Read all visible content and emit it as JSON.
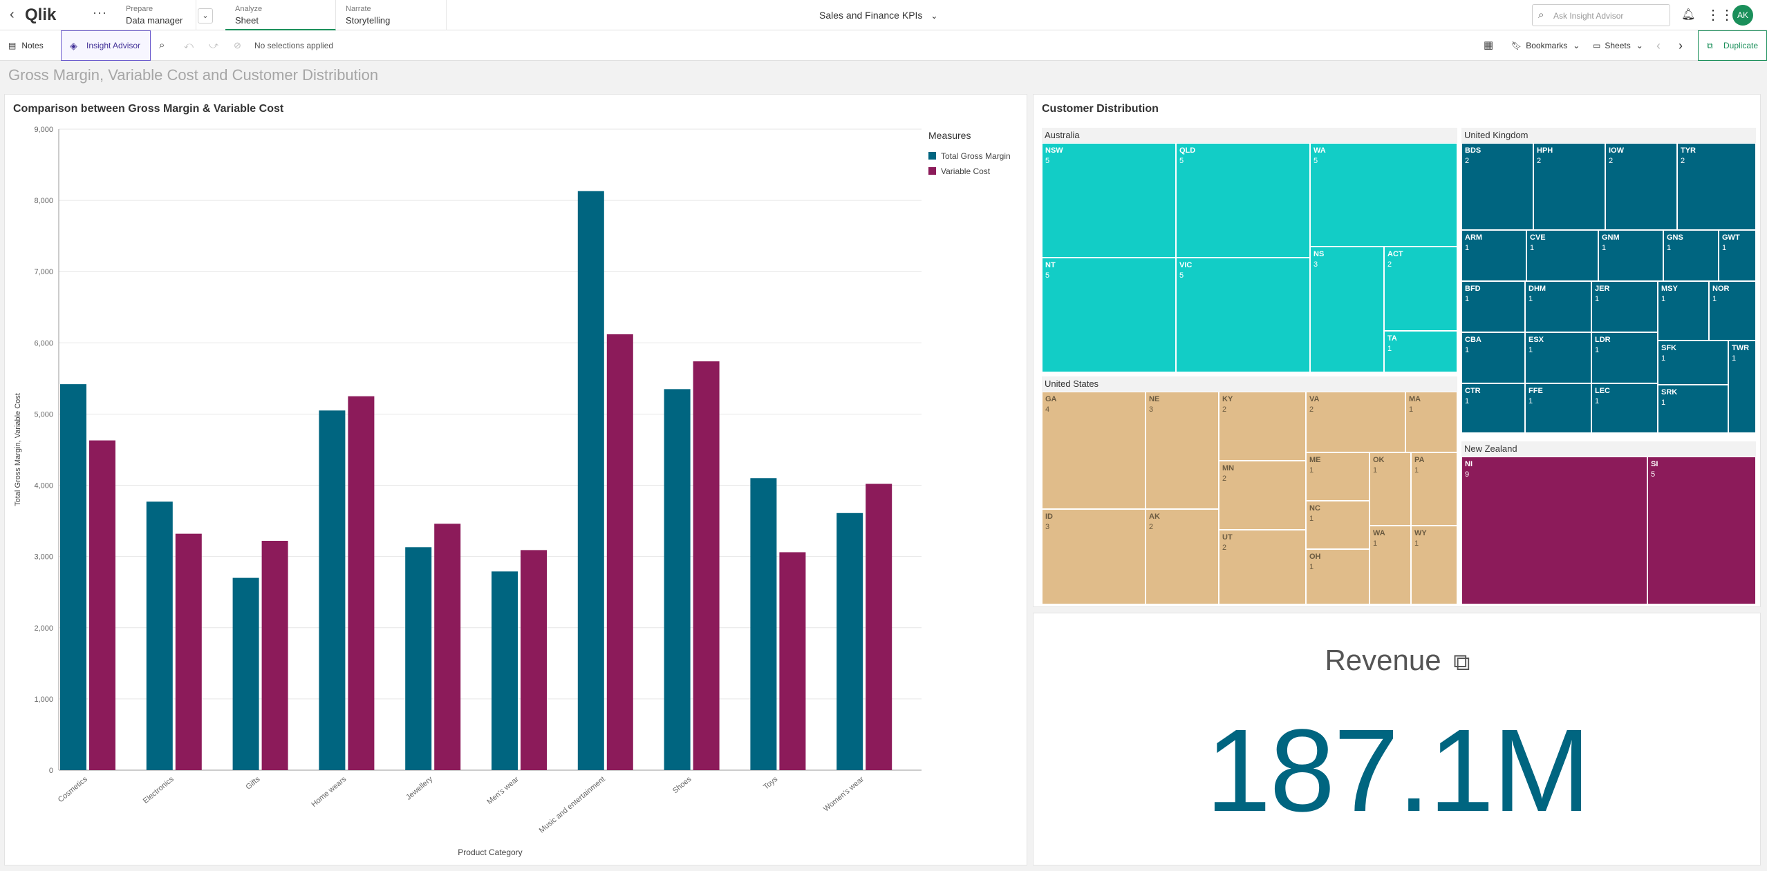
{
  "topbar": {
    "logo": "Qlik",
    "sections": [
      {
        "small": "Prepare",
        "big": "Data manager"
      },
      {
        "small": "Analyze",
        "big": "Sheet"
      },
      {
        "small": "Narrate",
        "big": "Storytelling"
      }
    ],
    "app_title": "Sales and Finance KPIs",
    "search_placeholder": "Ask Insight Advisor",
    "avatar": "AK"
  },
  "toolbar": {
    "notes": "Notes",
    "insight_advisor": "Insight Advisor",
    "selections": "No selections applied",
    "bookmarks": "Bookmarks",
    "sheets": "Sheets",
    "duplicate": "Duplicate"
  },
  "sheet_title": "Gross Margin, Variable Cost and Customer Distribution",
  "bar_panel": {
    "title": "Comparison between Gross Margin & Variable Cost",
    "legend_title": "Measures"
  },
  "chart_data": {
    "type": "bar",
    "title": "Comparison between Gross Margin & Variable Cost",
    "xlabel": "Product Category",
    "ylabel": "Total Gross Margin, Variable Cost",
    "ylim": [
      0,
      9000
    ],
    "yticks": [
      0,
      1000,
      2000,
      3000,
      4000,
      5000,
      6000,
      7000,
      8000,
      9000
    ],
    "ytick_labels": [
      "0",
      "1,000",
      "2,000",
      "3,000",
      "4,000",
      "5,000",
      "6,000",
      "7,000",
      "8,000",
      "9,000"
    ],
    "categories": [
      "Cosmetics",
      "Electronics",
      "Gifts",
      "Home wears",
      "Jewellery",
      "Men's wear",
      "Music and entertainment",
      "Shoes",
      "Toys",
      "Women's wear"
    ],
    "series": [
      {
        "name": "Total Gross Margin",
        "color": "#006580",
        "values": [
          5420,
          3770,
          2700,
          5050,
          3130,
          2790,
          8130,
          5350,
          4100,
          3610
        ]
      },
      {
        "name": "Variable Cost",
        "color": "#8c1b5a",
        "values": [
          4630,
          3320,
          3220,
          5250,
          3460,
          3090,
          6120,
          5740,
          3060,
          4020
        ]
      }
    ],
    "legend_position": "right",
    "grid": true
  },
  "treemap_panel": {
    "title": "Customer Distribution",
    "groups": [
      {
        "name": "Australia",
        "color": "#12cdc6",
        "cells": [
          {
            "code": "NSW",
            "value": "5"
          },
          {
            "code": "QLD",
            "value": "5"
          },
          {
            "code": "WA",
            "value": "5"
          },
          {
            "code": "NT",
            "value": "5"
          },
          {
            "code": "VIC",
            "value": "5"
          },
          {
            "code": "NS",
            "value": "3"
          },
          {
            "code": "ACT",
            "value": "2"
          },
          {
            "code": "TA",
            "value": "1"
          }
        ]
      },
      {
        "name": "United Kingdom",
        "color": "#006580",
        "cells": [
          {
            "code": "BDS",
            "value": "2"
          },
          {
            "code": "HPH",
            "value": "2"
          },
          {
            "code": "IOW",
            "value": "2"
          },
          {
            "code": "TYR",
            "value": "2"
          },
          {
            "code": "ARM",
            "value": "1"
          },
          {
            "code": "CVE",
            "value": "1"
          },
          {
            "code": "GNM",
            "value": "1"
          },
          {
            "code": "GNS",
            "value": "1"
          },
          {
            "code": "GWT",
            "value": "1"
          },
          {
            "code": "BFD",
            "value": "1"
          },
          {
            "code": "DHM",
            "value": "1"
          },
          {
            "code": "JER",
            "value": "1"
          },
          {
            "code": "MSY",
            "value": "1"
          },
          {
            "code": "NOR",
            "value": "1"
          },
          {
            "code": "CBA",
            "value": "1"
          },
          {
            "code": "ESX",
            "value": "1"
          },
          {
            "code": "LDR",
            "value": "1"
          },
          {
            "code": "SFK",
            "value": "1"
          },
          {
            "code": "TWR",
            "value": "1"
          },
          {
            "code": "CTR",
            "value": "1"
          },
          {
            "code": "FFE",
            "value": "1"
          },
          {
            "code": "LEC",
            "value": "1"
          },
          {
            "code": "SRK",
            "value": "1"
          }
        ]
      },
      {
        "name": "United States",
        "color": "#e0bc8a",
        "cells": [
          {
            "code": "GA",
            "value": "4"
          },
          {
            "code": "NE",
            "value": "3"
          },
          {
            "code": "KY",
            "value": "2"
          },
          {
            "code": "VA",
            "value": "2"
          },
          {
            "code": "MA",
            "value": "1"
          },
          {
            "code": "MN",
            "value": "2"
          },
          {
            "code": "ME",
            "value": "1"
          },
          {
            "code": "OK",
            "value": "1"
          },
          {
            "code": "PA",
            "value": "1"
          },
          {
            "code": "ID",
            "value": "3"
          },
          {
            "code": "AK",
            "value": "2"
          },
          {
            "code": "NC",
            "value": "1"
          },
          {
            "code": "UT",
            "value": "2"
          },
          {
            "code": "WA",
            "value": "1"
          },
          {
            "code": "WY",
            "value": "1"
          },
          {
            "code": "OH",
            "value": "1"
          }
        ]
      },
      {
        "name": "New Zealand",
        "color": "#8c1b5a",
        "cells": [
          {
            "code": "NI",
            "value": "9"
          },
          {
            "code": "SI",
            "value": "5"
          }
        ]
      }
    ]
  },
  "kpi": {
    "label": "Revenue",
    "value": "187.1M"
  }
}
